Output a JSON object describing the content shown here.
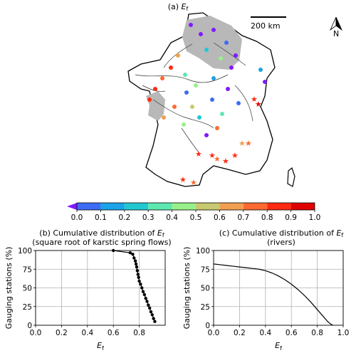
{
  "map": {
    "title_prefix": "(a) ",
    "title_var": "E",
    "title_sub": "f",
    "scale_label": "200 km",
    "north_label": "N"
  },
  "colorbar": {
    "ticks": [
      "0.0",
      "0.1",
      "0.2",
      "0.3",
      "0.4",
      "0.5",
      "0.6",
      "0.7",
      "0.8",
      "0.9",
      "1.0"
    ],
    "colors": [
      "#7f1aff",
      "#3c6cf5",
      "#1aa3e8",
      "#22c8d0",
      "#5de8b0",
      "#98f08a",
      "#c8c870",
      "#f0a050",
      "#ff6a30",
      "#ff2a10",
      "#e00000"
    ]
  },
  "chart_data": [
    {
      "type": "line",
      "title": "(b) Cumulative distribution of E_f",
      "title_line1_prefix": "(b) Cumulative distribution of ",
      "title_var": "E",
      "title_sub": "f",
      "subtitle": "(square root of karstic spring flows)",
      "xlabel_var": "E",
      "xlabel_sub": "f",
      "ylabel": "Gauging stations (%)",
      "xlim": [
        0,
        1
      ],
      "ylim": [
        0,
        100
      ],
      "xticks": [
        "0.0",
        "0.2",
        "0.4",
        "0.6",
        "0.8"
      ],
      "yticks": [
        "0",
        "25",
        "50",
        "75",
        "100"
      ],
      "grid": true,
      "markers": true,
      "x": [
        0.6,
        0.73,
        0.75,
        0.76,
        0.77,
        0.775,
        0.78,
        0.785,
        0.79,
        0.795,
        0.8,
        0.81,
        0.82,
        0.83,
        0.84,
        0.85,
        0.86,
        0.87,
        0.88,
        0.89,
        0.9,
        0.91,
        0.92
      ],
      "y": [
        100,
        97,
        95,
        90,
        86,
        82,
        78,
        73,
        68,
        64,
        59,
        55,
        50,
        45,
        41,
        36,
        32,
        27,
        23,
        18,
        14,
        9,
        5
      ]
    },
    {
      "type": "line",
      "title": "(c) Cumulative distribution of E_f",
      "title_line1_prefix": "(c) Cumulative distribution of ",
      "title_var": "E",
      "title_sub": "f",
      "subtitle": "(rivers)",
      "xlabel_var": "E",
      "xlabel_sub": "f",
      "ylabel": "Gauging stations (%)",
      "xlim": [
        0,
        1
      ],
      "ylim": [
        0,
        100
      ],
      "xticks": [
        "0.0",
        "0.2",
        "0.4",
        "0.6",
        "0.8",
        "1.0"
      ],
      "yticks": [
        "0",
        "25",
        "50",
        "75",
        "100"
      ],
      "grid": true,
      "markers": false,
      "x": [
        0.0,
        0.05,
        0.1,
        0.15,
        0.2,
        0.25,
        0.3,
        0.35,
        0.4,
        0.45,
        0.5,
        0.55,
        0.6,
        0.65,
        0.7,
        0.75,
        0.8,
        0.85,
        0.88,
        0.9,
        0.92
      ],
      "y": [
        82,
        81,
        80,
        79,
        78,
        77,
        76,
        75,
        73,
        70,
        66,
        61,
        55,
        48,
        40,
        31,
        21,
        11,
        5,
        2,
        0
      ]
    }
  ]
}
